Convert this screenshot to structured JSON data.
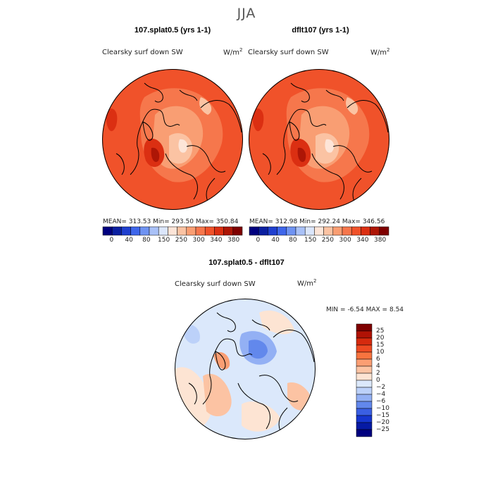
{
  "season": "JJA",
  "panels": [
    {
      "title": "107.splat0.5 (yrs 1-1)",
      "variable": "Clearsky surf down SW",
      "units_base": "W/m",
      "units_exp": "2",
      "stats": "MEAN= 313.53   Min= 293.50   Max= 350.84"
    },
    {
      "title": "dflt107 (yrs 1-1)",
      "variable": "Clearsky surf down SW",
      "units_base": "W/m",
      "units_exp": "2",
      "stats": "MEAN= 312.98   Min= 292.24   Max= 346.56"
    }
  ],
  "abs_colorbar": {
    "ticks": [
      "0",
      "40",
      "80",
      "150",
      "250",
      "300",
      "340",
      "380"
    ],
    "colors": [
      "#00007f",
      "#0a1fa0",
      "#1f3fcf",
      "#3e66ea",
      "#6f93f2",
      "#a9c1f7",
      "#dbe6fb",
      "#fde5d8",
      "#fbc3a3",
      "#f99e73",
      "#f6774c",
      "#f0522a",
      "#db2f12",
      "#ad1606",
      "#7f0000"
    ]
  },
  "diff_panel": {
    "title": "107.splat0.5 - dflt107",
    "variable": "Clearsky surf down SW",
    "units_base": "W/m",
    "units_exp": "2",
    "min_label": "MIN =",
    "min_value": "-6.54",
    "max_label": "MAX =",
    "max_value": "8.54"
  },
  "diff_colorbar": {
    "ticks": [
      "25",
      "20",
      "15",
      "10",
      "6",
      "4",
      "2",
      "0",
      "−2",
      "−4",
      "−6",
      "−10",
      "−15",
      "−20",
      "−25"
    ],
    "colors": [
      "#7f0000",
      "#b01205",
      "#d62a0e",
      "#ee4a22",
      "#f8743f",
      "#fb9e73",
      "#fcc3a3",
      "#fde4d3",
      "#dbe8fb",
      "#bcd1f9",
      "#93b0f4",
      "#6288ec",
      "#3a5fe3",
      "#1636cf",
      "#061aa4",
      "#00007f"
    ]
  }
}
